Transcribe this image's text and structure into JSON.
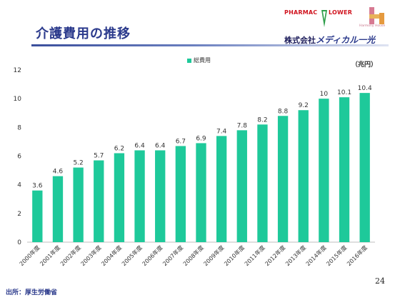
{
  "header": {
    "title": "介護費用の推移",
    "brand_prefix": "株式会社",
    "brand_name": "メディカル一光",
    "logo_pharmacy": "PHARMAC",
    "logo_pharmacy_flower": "LOWER",
    "logo_harmony": "Harmony House"
  },
  "colors": {
    "bar": "#1ec99a",
    "title": "#2b3a8c"
  },
  "chart_data": {
    "type": "bar",
    "categories": [
      "2000年度",
      "2001年度",
      "2002年度",
      "2003年度",
      "2004年度",
      "2005年度",
      "2006年度",
      "2007年度",
      "2008年度",
      "2009年度",
      "2010年度",
      "2011年度",
      "2012年度",
      "2013年度",
      "2014年度",
      "2015年度",
      "2016年度"
    ],
    "series": [
      {
        "name": "総費用",
        "values": [
          3.6,
          4.6,
          5.2,
          5.7,
          6.2,
          6.4,
          6.4,
          6.7,
          6.9,
          7.4,
          7.8,
          8.2,
          8.8,
          9.2,
          10,
          10.1,
          10.4
        ]
      }
    ],
    "unit": "（兆円）",
    "yticks": [
      0,
      2,
      4,
      6,
      8,
      10,
      12
    ],
    "ylim": [
      0,
      12
    ],
    "grid": false,
    "legend": "top-center"
  },
  "footer": {
    "page_number": "24",
    "source": "出所：厚生労働省"
  }
}
